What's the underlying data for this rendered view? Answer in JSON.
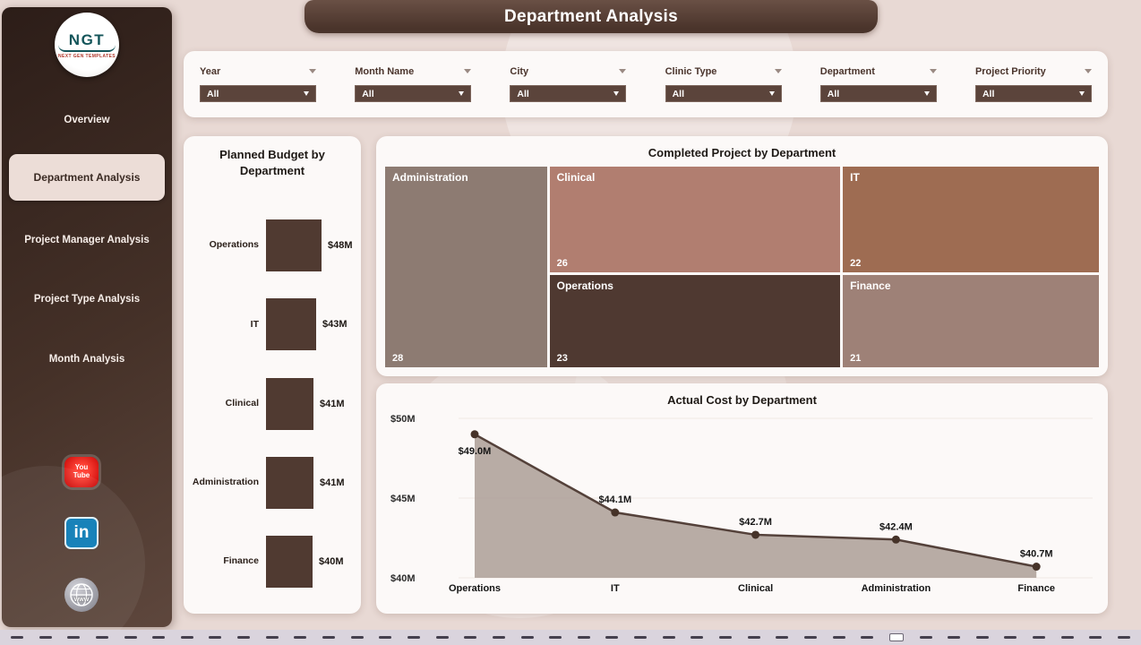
{
  "header": {
    "title": "Department Analysis"
  },
  "sidebar": {
    "logo": {
      "text": "NGT",
      "subtext": "NEXT GEN TEMPLATES"
    },
    "items": [
      {
        "label": "Overview",
        "active": false
      },
      {
        "label": "Department Analysis",
        "active": true
      },
      {
        "label": "Project Manager Analysis",
        "active": false
      },
      {
        "label": "Project Type Analysis",
        "active": false
      },
      {
        "label": "Month Analysis",
        "active": false
      }
    ],
    "social": {
      "youtube": {
        "line1": "You",
        "line2": "Tube"
      },
      "linkedin": {
        "label": "in"
      },
      "website": {
        "label": "www"
      }
    }
  },
  "filters": [
    {
      "label": "Year",
      "value": "All"
    },
    {
      "label": "Month Name",
      "value": "All"
    },
    {
      "label": "City",
      "value": "All"
    },
    {
      "label": "Clinic Type",
      "value": "All"
    },
    {
      "label": "Department",
      "value": "All"
    },
    {
      "label": "Project Priority",
      "value": "All"
    }
  ],
  "chart_data": [
    {
      "type": "bar",
      "title": "Planned Budget by Department",
      "orientation": "horizontal",
      "categories": [
        "Operations",
        "IT",
        "Clinical",
        "Administration",
        "Finance"
      ],
      "values": [
        48,
        43,
        41,
        41,
        40
      ],
      "value_labels": [
        "$48M",
        "$43M",
        "$41M",
        "$41M",
        "$40M"
      ],
      "bar_color": "#503a31"
    },
    {
      "type": "treemap",
      "title": "Completed Project by Department",
      "tiles": [
        {
          "name": "Administration",
          "value": 28,
          "color": "#8d7b72",
          "area": "administration"
        },
        {
          "name": "Clinical",
          "value": 26,
          "color": "#b17e70",
          "area": "clinical"
        },
        {
          "name": "IT",
          "value": 22,
          "color": "#9e6c52",
          "area": "it"
        },
        {
          "name": "Operations",
          "value": 23,
          "color": "#4f3931",
          "area": "operations"
        },
        {
          "name": "Finance",
          "value": 21,
          "color": "#9e8177",
          "area": "finance"
        }
      ]
    },
    {
      "type": "area",
      "title": "Actual Cost by Department",
      "categories": [
        "Operations",
        "IT",
        "Clinical",
        "Administration",
        "Finance"
      ],
      "values": [
        49.0,
        44.1,
        42.7,
        42.4,
        40.7
      ],
      "value_labels": [
        "$49.0M",
        "$44.1M",
        "$42.7M",
        "$42.4M",
        "$40.7M"
      ],
      "y_ticks": [
        "$50M",
        "$45M",
        "$40M"
      ],
      "y_tick_values": [
        50,
        45,
        40
      ],
      "ylim": [
        40,
        50
      ],
      "line_color": "#54413a",
      "fill_color": "rgba(168,155,147,0.82)"
    }
  ],
  "footer": {
    "page_count": 40,
    "active_index": 31
  }
}
